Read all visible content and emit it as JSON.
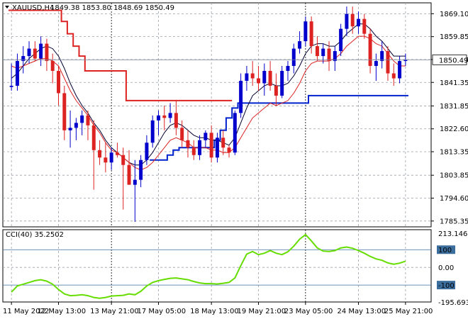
{
  "header": {
    "symbol": "XAUUSD,H4",
    "ohlc": "1849.38 1853.80 1848.69 1850.49"
  },
  "price_panel": {
    "current_price_label": "1850.49",
    "y_ticks": [
      "1869.10",
      "1859.85",
      "1850.60",
      "1841.35",
      "1831.85",
      "1822.60",
      "1813.35",
      "1803.85",
      "1794.60",
      "1785.35"
    ]
  },
  "cci_panel": {
    "title": "CCI(40) 35.2502",
    "level_labels": [
      "213.1468",
      "100",
      "0.00",
      "-100",
      "-195.6935"
    ]
  },
  "x_labels": [
    "11 May 2022",
    "12 May 13:00",
    "13 May 21:00",
    "17 May 05:00",
    "18 May 13:00",
    "19 May 21:00",
    "23 May 05:00",
    "24 May 13:00",
    "25 May 21:00"
  ],
  "colors": {
    "bull": "#0000cc",
    "bear": "#dd2222",
    "ma_fast": "#dd2222",
    "ma_slow": "#000033",
    "channel_upper": "#dd2222",
    "channel_lower": "#0022cc",
    "cci": "#66dd00",
    "grid": "#9aa0a8",
    "level": "#3b6e9c"
  },
  "chart_data": [
    {
      "type": "candlestick",
      "title": "XAUUSD,H4",
      "ylim": [
        1783.0,
        1873.5
      ],
      "ticks": [
        1869.1,
        1859.85,
        1850.6,
        1841.35,
        1831.85,
        1822.6,
        1813.35,
        1803.85,
        1794.6,
        1785.35
      ],
      "current_price": 1850.49,
      "candles": [
        [
          1839.5,
          1849,
          1838,
          1840
        ],
        [
          1840,
          1853,
          1838,
          1850
        ],
        [
          1850,
          1856,
          1845,
          1852
        ],
        [
          1852,
          1858,
          1849,
          1855
        ],
        [
          1855,
          1858,
          1850,
          1851
        ],
        [
          1851,
          1860,
          1848,
          1857
        ],
        [
          1857,
          1859,
          1846,
          1850
        ],
        [
          1850,
          1853,
          1841,
          1846
        ],
        [
          1846,
          1848,
          1832,
          1837
        ],
        [
          1837,
          1840,
          1818,
          1822
        ],
        [
          1822,
          1830,
          1815,
          1823
        ],
        [
          1823,
          1827,
          1818,
          1825
        ],
        [
          1825,
          1830,
          1820,
          1828
        ],
        [
          1828,
          1830,
          1818,
          1824
        ],
        [
          1824,
          1826,
          1798,
          1814
        ],
        [
          1814,
          1818,
          1808,
          1811
        ],
        [
          1811,
          1817,
          1805,
          1809
        ],
        [
          1809,
          1815,
          1806,
          1813
        ],
        [
          1813,
          1817,
          1811,
          1812
        ],
        [
          1812,
          1815,
          1790,
          1808
        ],
        [
          1808,
          1814,
          1800,
          1800
        ],
        [
          1800,
          1810,
          1785,
          1802
        ],
        [
          1802,
          1812,
          1799,
          1810
        ],
        [
          1810,
          1820,
          1808,
          1817
        ],
        [
          1817,
          1828,
          1815,
          1826
        ],
        [
          1826,
          1830,
          1820,
          1828
        ],
        [
          1828,
          1832,
          1822,
          1827
        ],
        [
          1827,
          1833,
          1825,
          1829
        ],
        [
          1829,
          1834,
          1820,
          1823
        ],
        [
          1823,
          1826,
          1815,
          1818
        ],
        [
          1818,
          1822,
          1811,
          1815
        ],
        [
          1815,
          1818,
          1810,
          1812
        ],
        [
          1812,
          1820,
          1810,
          1818
        ],
        [
          1818,
          1822,
          1815,
          1821
        ],
        [
          1821,
          1824,
          1809,
          1811
        ],
        [
          1811,
          1821,
          1809,
          1819
        ],
        [
          1819,
          1822,
          1812,
          1815
        ],
        [
          1815,
          1816,
          1811,
          1813
        ],
        [
          1813,
          1830,
          1812,
          1829
        ],
        [
          1829,
          1845,
          1827,
          1842
        ],
        [
          1842,
          1848,
          1838,
          1845
        ],
        [
          1845,
          1850,
          1840,
          1843
        ],
        [
          1843,
          1848,
          1838,
          1841
        ],
        [
          1841,
          1849,
          1836,
          1846
        ],
        [
          1846,
          1850,
          1838,
          1840
        ],
        [
          1840,
          1845,
          1832,
          1836
        ],
        [
          1836,
          1848,
          1835,
          1846
        ],
        [
          1846,
          1850,
          1842,
          1848
        ],
        [
          1848,
          1857,
          1845,
          1855
        ],
        [
          1855,
          1862,
          1853,
          1858
        ],
        [
          1858,
          1868,
          1856,
          1866
        ],
        [
          1866,
          1868,
          1853,
          1856
        ],
        [
          1856,
          1860,
          1850,
          1852
        ],
        [
          1852,
          1857,
          1849,
          1855
        ],
        [
          1855,
          1858,
          1846,
          1850
        ],
        [
          1850,
          1856,
          1846,
          1854
        ],
        [
          1854,
          1865,
          1852,
          1863
        ],
        [
          1863,
          1872,
          1860,
          1869
        ],
        [
          1869,
          1872,
          1861,
          1864
        ],
        [
          1864,
          1870,
          1861,
          1867
        ],
        [
          1867,
          1869,
          1859,
          1861
        ],
        [
          1861,
          1863,
          1845,
          1848
        ],
        [
          1848,
          1853,
          1842,
          1850
        ],
        [
          1850,
          1858,
          1847,
          1854
        ],
        [
          1854,
          1856,
          1842,
          1845
        ],
        [
          1845,
          1849,
          1840,
          1843
        ],
        [
          1843,
          1852,
          1841,
          1850
        ],
        [
          1850,
          1853,
          1848,
          1850.49
        ]
      ],
      "ma_fast": [
        1848,
        1847,
        1848,
        1849,
        1850,
        1851,
        1851,
        1850,
        1848,
        1843,
        1838,
        1834,
        1831,
        1828,
        1824,
        1821,
        1817,
        1814,
        1813,
        1811,
        1809,
        1807,
        1806,
        1807,
        1809,
        1812,
        1815,
        1818,
        1819,
        1818,
        1817,
        1815,
        1815,
        1815,
        1814,
        1814,
        1813,
        1813,
        1815,
        1819,
        1823,
        1827,
        1829,
        1831,
        1833,
        1832,
        1833,
        1834,
        1837,
        1841,
        1846,
        1849,
        1850,
        1850,
        1850,
        1851,
        1853,
        1856,
        1858,
        1860,
        1860,
        1859,
        1857,
        1856,
        1853,
        1850,
        1848,
        1848
      ],
      "ma_slow": [
        1843,
        1845,
        1848,
        1851,
        1853,
        1855,
        1856,
        1855,
        1852,
        1847,
        1841,
        1836,
        1832,
        1829,
        1825,
        1822,
        1818,
        1815,
        1813,
        1811,
        1809,
        1808,
        1808,
        1810,
        1813,
        1817,
        1821,
        1824,
        1825,
        1824,
        1822,
        1820,
        1819,
        1819,
        1818,
        1818,
        1817,
        1816,
        1819,
        1825,
        1831,
        1836,
        1838,
        1840,
        1841,
        1840,
        1840,
        1841,
        1844,
        1848,
        1853,
        1856,
        1857,
        1857,
        1856,
        1856,
        1858,
        1861,
        1863,
        1865,
        1865,
        1863,
        1860,
        1858,
        1855,
        1852,
        1852,
        1852
      ],
      "channel_upper": [
        1870.5,
        1870.5,
        1870.5,
        1870.5,
        1870.5,
        1870.5,
        1870.5,
        1870.5,
        1870.5,
        1866,
        1861,
        1856,
        1852,
        1846,
        1846,
        1846,
        1846,
        1846,
        1846,
        1846,
        1834,
        1834,
        1834,
        1834,
        1834,
        1834,
        1834,
        1834,
        1834,
        1834,
        1834,
        1834,
        1834,
        1834,
        1834,
        1834,
        1834,
        1834
      ],
      "channel_lower": [
        1810,
        1810,
        1810,
        1812,
        1814,
        1815,
        1815,
        1815,
        1815,
        1815,
        1815,
        1818,
        1822,
        1827,
        1831,
        1833,
        1833,
        1833,
        1833,
        1833,
        1833,
        1833,
        1833,
        1833,
        1833,
        1833,
        1833,
        1836,
        1836,
        1836,
        1836,
        1836,
        1836,
        1836,
        1836,
        1836,
        1836,
        1836,
        1836,
        1836,
        1836,
        1836,
        1836,
        1836
      ],
      "x_labels": [
        "11 May 2022",
        "12 May 13:00",
        "13 May 21:00",
        "17 May 05:00",
        "18 May 13:00",
        "19 May 21:00",
        "23 May 05:00",
        "24 May 13:00",
        "25 May 21:00"
      ]
    },
    {
      "type": "line",
      "title": "CCI(40) 35.2502",
      "ylim": [
        -195.6935,
        213.1468
      ],
      "levels": [
        100,
        0,
        -100
      ],
      "series": [
        {
          "name": "CCI(40)",
          "values": [
            -140,
            -105,
            -95,
            -85,
            -75,
            -70,
            -78,
            -95,
            -125,
            -150,
            -160,
            -158,
            -155,
            -160,
            -170,
            -175,
            -170,
            -162,
            -160,
            -158,
            -150,
            -155,
            -135,
            -105,
            -85,
            -75,
            -68,
            -62,
            -60,
            -65,
            -70,
            -80,
            -88,
            -92,
            -92,
            -94,
            -90,
            -85,
            -60,
            10,
            75,
            90,
            72,
            80,
            95,
            80,
            72,
            88,
            120,
            160,
            185,
            150,
            110,
            92,
            90,
            95,
            110,
            115,
            108,
            95,
            80,
            62,
            48,
            40,
            25,
            18,
            24,
            35
          ]
        }
      ]
    }
  ]
}
